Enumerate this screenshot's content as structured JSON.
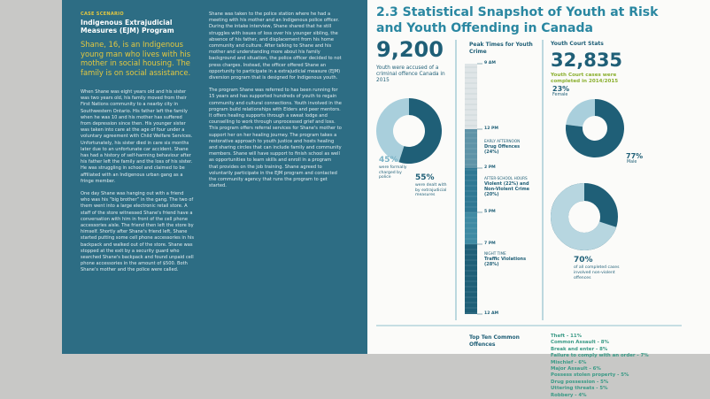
{
  "case": {
    "label": "CASE SCENARIO",
    "title": "Indigenous Extrajudicial Measures (EJM) Program",
    "lead": "Shane, 16, is an Indigenous young man who lives with his mother in social housing. The family is on social assistance.",
    "paragraphs": [
      "When Shane was eight years old and his sister was two years old, his family moved from their First Nations community to a nearby city in Southwestern Ontario. His father left the family when he was 10 and his mother has suffered from depression since then. His younger sister was taken into care at the age of four under a voluntary agreement with Child Welfare Services. Unfortunately, his sister died in care six months later due to an unfortunate car accident. Shane has had a history of self-harming behaviour after his father left the family and the loss of his sister. He was struggling in school and claimed to be affiliated with an Indigenous urban gang as a fringe member.",
      "One day Shane was hanging out with a friend who was his “big brother” in the gang. The two of them went into a large electronic retail store. A staff of the store witnessed Shane's friend have a conversation with him in front of the cell phone accessories aisle. The friend then left the store by himself. Shortly after Shane's friend left, Shane started putting some cell phone accessories in his backpack and walked out of the store. Shane was stopped at the exit by a security guard who searched Shane's backpack and found unpaid cell phone accessories in the amount of $500. Both Shane's mother and the police were called.",
      "Shane was taken to the police station where he had a meeting with his mother and an Indigenous police officer. During the intake interview, Shane shared that he still struggles with issues of loss over his younger sibling, the absence of his father, and displacement from his home community and culture. After talking to Shane and his mother and understanding more about his family background and situation, the police officer decided to not press charges. Instead, the officer offered Shane an opportunity to participate in a extrajudicial measure (EJM) diversion program that is designed for Indigenous youth.",
      "The program Shane was referred to has been running for 15 years and has supported hundreds of youth to regain community and cultural connections. Youth involved in the program build relationships with Elders and peer mentors. It offers healing supports through a sweat lodge and counselling to work through unprocessed grief and loss. This program offers referral services for Shane's mother to support her on her healing journey. The program takes a restorative approach to youth justice and hosts healing and sharing circles that can include family and community members. Shane will have support to finish school as well as opportunities to learn skills and enroll in a program that provides on the job training. Shane agreed to voluntarily participate in the EJM program and contacted the community agency that runs the program to get started."
    ]
  },
  "snapshot": {
    "title": "2.3 Statistical Snapshot of Youth at Risk and Youth Offending in Canada",
    "accused": {
      "number": "9,200",
      "caption": "Youth were accused of a criminal offence Canada in 2015",
      "donut": [
        {
          "value": 45,
          "label": "45%",
          "caption": "were formally charged by police",
          "color": "#a9cfdc"
        },
        {
          "value": 55,
          "label": "55%",
          "caption": "were dealt with by extrajudicial measures",
          "color": "#1f5f77"
        }
      ]
    },
    "peak_times": {
      "title": "Peak Times for Youth Crime",
      "times": [
        "9 AM",
        "12 PM",
        "2 PM",
        "5 PM",
        "7 PM",
        "12 AM"
      ],
      "periods": [
        {
          "heading": "EARLY AFTERNOON",
          "text": "Drug Offences (24%)"
        },
        {
          "heading": "AFTER-SCHOOL HOURS",
          "text": "Violent (22%) and Non-Violent Crime (20%)"
        },
        {
          "heading": "NIGHT TIME",
          "text": "Traffic Violations (28%)"
        }
      ]
    },
    "court": {
      "title": "Youth Court Stats",
      "number": "32,835",
      "caption": "Youth Court cases were completed in 2014/2015",
      "gender_donut": [
        {
          "value": 23,
          "label": "23%",
          "caption": "Female",
          "color": "#a9cfdc"
        },
        {
          "value": 77,
          "label": "77%",
          "caption": "Male",
          "color": "#1f5f77"
        }
      ],
      "nonviolent": {
        "value": 70,
        "label": "70%",
        "caption": "of all completed cases involved non-violent offences",
        "color": "#b7d6e0"
      }
    },
    "offences": {
      "title": "Top Ten Common Offences",
      "items": [
        "Theft - 11%",
        "Common Assault - 8%",
        "Break and enter - 8%",
        "Failure to comply with an order - 7%",
        "Mischief - 6%",
        "Major Assault - 6%",
        "Possess stolen property - 5%",
        "Drug possession - 5%",
        "Uttering threats - 5%",
        "Robbery - 4%"
      ]
    }
  }
}
